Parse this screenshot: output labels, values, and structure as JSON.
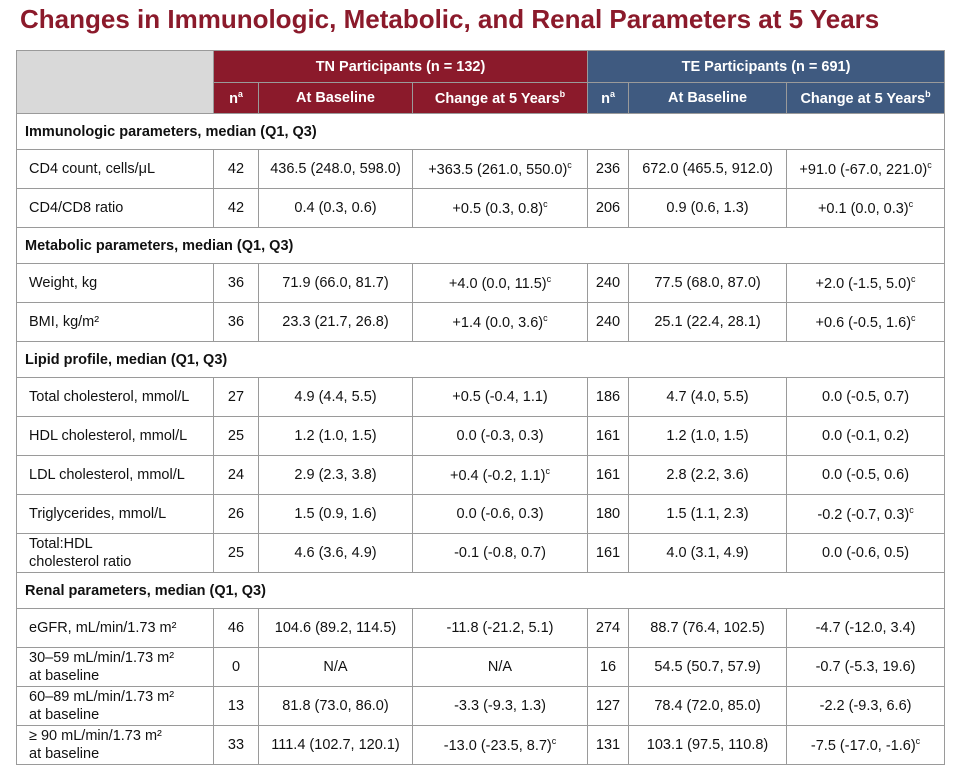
{
  "title": "Changes in Immunologic, Metabolic, and Renal Parameters at 5 Years",
  "table": {
    "groups": [
      "TN Participants (n = 132)",
      "TE Participants (n = 691)"
    ],
    "columns": [
      {
        "text": "n",
        "sup": "a"
      },
      {
        "text": "At Baseline"
      },
      {
        "text": "Change at 5 Years",
        "sup": "b"
      },
      {
        "text": "n",
        "sup": "a"
      },
      {
        "text": "At Baseline"
      },
      {
        "text": "Change at 5 Years",
        "sup": "b"
      }
    ],
    "sections": [
      {
        "title": "Immunologic parameters, median (Q1, Q3)",
        "rows": [
          {
            "label": "CD4 count, cells/μL",
            "cells": [
              {
                "text": "42"
              },
              {
                "text": "436.5 (248.0, 598.0)"
              },
              {
                "text": "+363.5 (261.0, 550.0)",
                "sup": "c"
              },
              {
                "text": "236"
              },
              {
                "text": "672.0 (465.5, 912.0)"
              },
              {
                "text": "+91.0 (-67.0, 221.0)",
                "sup": "c"
              }
            ]
          },
          {
            "label": "CD4/CD8 ratio",
            "cells": [
              {
                "text": "42"
              },
              {
                "text": "0.4 (0.3, 0.6)"
              },
              {
                "text": "+0.5 (0.3, 0.8)",
                "sup": "c"
              },
              {
                "text": "206"
              },
              {
                "text": "0.9 (0.6, 1.3)"
              },
              {
                "text": "+0.1 (0.0, 0.3)",
                "sup": "c"
              }
            ]
          }
        ]
      },
      {
        "title": "Metabolic parameters, median (Q1, Q3)",
        "rows": [
          {
            "label": "Weight, kg",
            "cells": [
              {
                "text": "36"
              },
              {
                "text": "71.9 (66.0, 81.7)"
              },
              {
                "text": "+4.0 (0.0, 11.5)",
                "sup": "c"
              },
              {
                "text": "240"
              },
              {
                "text": "77.5 (68.0, 87.0)"
              },
              {
                "text": "+2.0 (-1.5, 5.0)",
                "sup": "c"
              }
            ]
          },
          {
            "label": "BMI, kg/m²",
            "cells": [
              {
                "text": "36"
              },
              {
                "text": "23.3 (21.7, 26.8)"
              },
              {
                "text": "+1.4 (0.0, 3.6)",
                "sup": "c"
              },
              {
                "text": "240"
              },
              {
                "text": "25.1 (22.4, 28.1)"
              },
              {
                "text": "+0.6 (-0.5, 1.6)",
                "sup": "c"
              }
            ]
          }
        ]
      },
      {
        "title": "Lipid profile, median (Q1, Q3)",
        "rows": [
          {
            "label": "Total cholesterol, mmol/L",
            "cells": [
              {
                "text": "27"
              },
              {
                "text": "4.9 (4.4, 5.5)"
              },
              {
                "text": "+0.5 (-0.4, 1.1)"
              },
              {
                "text": "186"
              },
              {
                "text": "4.7 (4.0, 5.5)"
              },
              {
                "text": "0.0 (-0.5, 0.7)"
              }
            ]
          },
          {
            "label": "HDL cholesterol, mmol/L",
            "cells": [
              {
                "text": "25"
              },
              {
                "text": "1.2 (1.0, 1.5)"
              },
              {
                "text": "0.0 (-0.3, 0.3)"
              },
              {
                "text": "161"
              },
              {
                "text": "1.2 (1.0, 1.5)"
              },
              {
                "text": "0.0 (-0.1, 0.2)"
              }
            ]
          },
          {
            "label": "LDL cholesterol, mmol/L",
            "cells": [
              {
                "text": "24"
              },
              {
                "text": "2.9 (2.3, 3.8)"
              },
              {
                "text": "+0.4 (-0.2, 1.1)",
                "sup": "c"
              },
              {
                "text": "161"
              },
              {
                "text": "2.8 (2.2, 3.6)"
              },
              {
                "text": "0.0 (-0.5, 0.6)"
              }
            ]
          },
          {
            "label": "Triglycerides, mmol/L",
            "cells": [
              {
                "text": "26"
              },
              {
                "text": "1.5 (0.9, 1.6)"
              },
              {
                "text": "0.0 (-0.6, 0.3)"
              },
              {
                "text": "180"
              },
              {
                "text": "1.5 (1.1, 2.3)"
              },
              {
                "text": "-0.2 (-0.7, 0.3)",
                "sup": "c"
              }
            ]
          },
          {
            "label": "Total:HDL\ncholesterol ratio",
            "cells": [
              {
                "text": "25"
              },
              {
                "text": "4.6 (3.6, 4.9)"
              },
              {
                "text": "-0.1 (-0.8, 0.7)"
              },
              {
                "text": "161"
              },
              {
                "text": "4.0 (3.1, 4.9)"
              },
              {
                "text": "0.0 (-0.6, 0.5)"
              }
            ]
          }
        ]
      },
      {
        "title": "Renal parameters, median (Q1, Q3)",
        "rows": [
          {
            "label": "eGFR, mL/min/1.73 m²",
            "cells": [
              {
                "text": "46"
              },
              {
                "text": "104.6 (89.2, 114.5)"
              },
              {
                "text": "-11.8 (-21.2, 5.1)"
              },
              {
                "text": "274"
              },
              {
                "text": "88.7 (76.4, 102.5)"
              },
              {
                "text": "-4.7 (-12.0, 3.4)"
              }
            ]
          },
          {
            "label": "30–59 mL/min/1.73 m²\nat baseline",
            "cells": [
              {
                "text": "0"
              },
              {
                "text": "N/A"
              },
              {
                "text": "N/A"
              },
              {
                "text": "16"
              },
              {
                "text": "54.5 (50.7, 57.9)"
              },
              {
                "text": "-0.7 (-5.3, 19.6)"
              }
            ]
          },
          {
            "label": "60–89 mL/min/1.73 m²\nat baseline",
            "cells": [
              {
                "text": "13"
              },
              {
                "text": "81.8 (73.0, 86.0)"
              },
              {
                "text": "-3.3 (-9.3, 1.3)"
              },
              {
                "text": "127"
              },
              {
                "text": "78.4 (72.0, 85.0)"
              },
              {
                "text": "-2.2 (-9.3, 6.6)"
              }
            ]
          },
          {
            "label": "≥ 90 mL/min/1.73 m²\nat baseline",
            "cells": [
              {
                "text": "33"
              },
              {
                "text": "111.4 (102.7, 120.1)"
              },
              {
                "text": "-13.0 (-23.5, 8.7)",
                "sup": "c"
              },
              {
                "text": "131"
              },
              {
                "text": "103.1 (97.5, 110.8)"
              },
              {
                "text": "-7.5 (-17.0, -1.6)",
                "sup": "c"
              }
            ]
          }
        ]
      }
    ]
  }
}
